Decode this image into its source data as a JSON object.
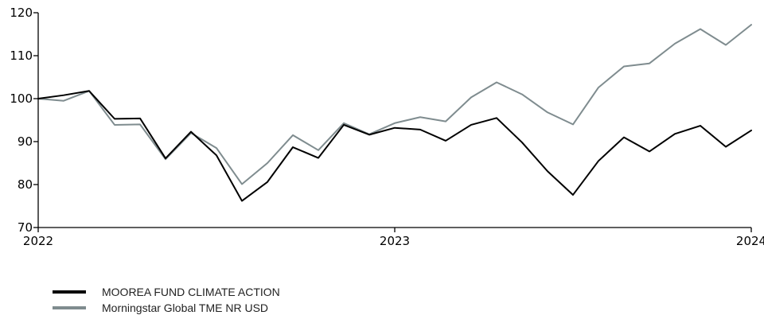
{
  "chart_data": {
    "type": "line",
    "x_ticks": [
      "2022",
      "2023",
      "2024"
    ],
    "xlim": [
      0,
      24
    ],
    "ylim": [
      70,
      120
    ],
    "y_ticks": [
      70,
      80,
      90,
      100,
      110,
      120
    ],
    "title": "",
    "xlabel": "",
    "ylabel": "",
    "grid": false,
    "legend_position": "bottom-left",
    "series": [
      {
        "name": "MOOREA FUND CLIMATE ACTION",
        "color": "#000000",
        "values": [
          100,
          100.8,
          101.8,
          95.3,
          95.4,
          86.1,
          92.3,
          86.8,
          76.2,
          80.6,
          88.7,
          86.2,
          93.9,
          91.6,
          93.2,
          92.8,
          90.2,
          93.9,
          95.5,
          89.8,
          83.1,
          77.6,
          85.5,
          91.0,
          87.7,
          91.8,
          93.7,
          88.8,
          92.6
        ]
      },
      {
        "name": "Morningstar Global TME NR USD",
        "color": "#7f8c8f",
        "values": [
          100,
          99.5,
          101.8,
          93.9,
          94.0,
          85.9,
          92.0,
          88.5,
          80.1,
          85.0,
          91.5,
          88.0,
          94.3,
          91.7,
          94.3,
          95.7,
          94.7,
          100.3,
          103.8,
          101.0,
          96.8,
          94.0,
          102.6,
          107.5,
          108.2,
          112.8,
          116.2,
          112.5,
          117.2
        ]
      }
    ]
  }
}
